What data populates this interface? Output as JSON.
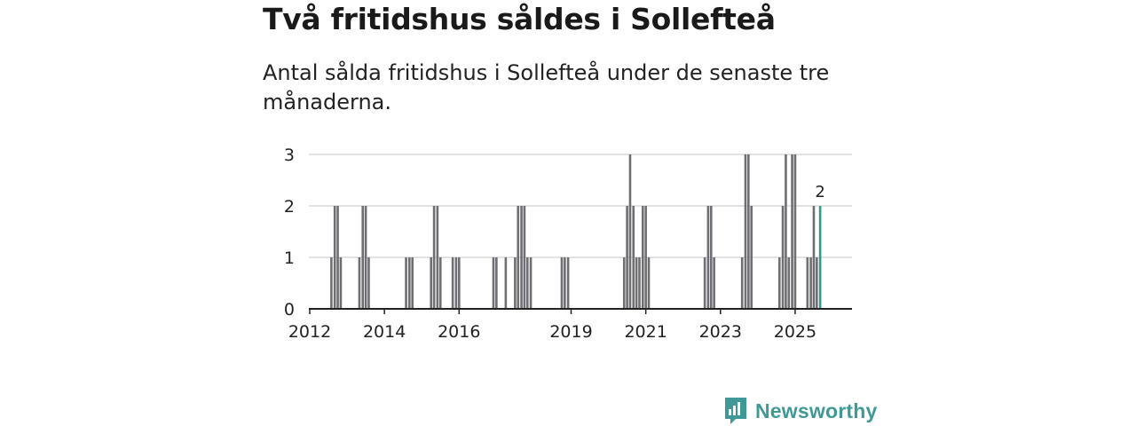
{
  "header": {
    "title": "Två fritidshus såldes i Sollefteå",
    "subtitle": "Antal sålda fritidshus i Sollefteå under de senaste tre månaderna."
  },
  "brand": {
    "name": "Newsworthy"
  },
  "colors": {
    "bar": "#6e6e73",
    "highlight": "#2a9d93",
    "grid": "#d9d9d9",
    "axis": "#222222",
    "brand": "#3f9996"
  },
  "chart_data": {
    "type": "bar",
    "title": "Två fritidshus såldes i Sollefteå",
    "subtitle": "Antal sålda fritidshus i Sollefteå under de senaste tre månaderna.",
    "xlabel": "",
    "ylabel": "",
    "ylim": [
      0,
      3
    ],
    "yticks": [
      "0",
      "1",
      "2",
      "3"
    ],
    "x_start": 2012.0,
    "x_end": 2026.0,
    "xticks": [
      {
        "label": "2012",
        "value": 2012.0
      },
      {
        "label": "2014",
        "value": 2014.0
      },
      {
        "label": "2016",
        "value": 2016.0
      },
      {
        "label": "2019",
        "value": 2019.0
      },
      {
        "label": "2021",
        "value": 2021.0
      },
      {
        "label": "2023",
        "value": 2023.0
      },
      {
        "label": "2025",
        "value": 2025.0
      }
    ],
    "grid": true,
    "bars": [
      {
        "t": 2012.58,
        "v": 1
      },
      {
        "t": 2012.67,
        "v": 2
      },
      {
        "t": 2012.75,
        "v": 2
      },
      {
        "t": 2012.83,
        "v": 1
      },
      {
        "t": 2013.33,
        "v": 1
      },
      {
        "t": 2013.42,
        "v": 2
      },
      {
        "t": 2013.5,
        "v": 2
      },
      {
        "t": 2013.58,
        "v": 1
      },
      {
        "t": 2014.58,
        "v": 1
      },
      {
        "t": 2014.67,
        "v": 1
      },
      {
        "t": 2014.75,
        "v": 1
      },
      {
        "t": 2015.25,
        "v": 1
      },
      {
        "t": 2015.33,
        "v": 2
      },
      {
        "t": 2015.42,
        "v": 2
      },
      {
        "t": 2015.5,
        "v": 1
      },
      {
        "t": 2015.83,
        "v": 1
      },
      {
        "t": 2015.92,
        "v": 1
      },
      {
        "t": 2016.0,
        "v": 1
      },
      {
        "t": 2016.92,
        "v": 1
      },
      {
        "t": 2017.0,
        "v": 1
      },
      {
        "t": 2017.25,
        "v": 1
      },
      {
        "t": 2017.5,
        "v": 1
      },
      {
        "t": 2017.58,
        "v": 2
      },
      {
        "t": 2017.67,
        "v": 2
      },
      {
        "t": 2017.75,
        "v": 2
      },
      {
        "t": 2017.83,
        "v": 1
      },
      {
        "t": 2017.92,
        "v": 1
      },
      {
        "t": 2018.75,
        "v": 1
      },
      {
        "t": 2018.83,
        "v": 1
      },
      {
        "t": 2018.92,
        "v": 1
      },
      {
        "t": 2020.42,
        "v": 1
      },
      {
        "t": 2020.5,
        "v": 2
      },
      {
        "t": 2020.58,
        "v": 3
      },
      {
        "t": 2020.67,
        "v": 2
      },
      {
        "t": 2020.75,
        "v": 1
      },
      {
        "t": 2020.83,
        "v": 1
      },
      {
        "t": 2020.92,
        "v": 2
      },
      {
        "t": 2021.0,
        "v": 2
      },
      {
        "t": 2021.08,
        "v": 1
      },
      {
        "t": 2022.58,
        "v": 1
      },
      {
        "t": 2022.67,
        "v": 2
      },
      {
        "t": 2022.75,
        "v": 2
      },
      {
        "t": 2022.83,
        "v": 1
      },
      {
        "t": 2023.58,
        "v": 1
      },
      {
        "t": 2023.67,
        "v": 3
      },
      {
        "t": 2023.75,
        "v": 3
      },
      {
        "t": 2023.83,
        "v": 2
      },
      {
        "t": 2024.58,
        "v": 1
      },
      {
        "t": 2024.67,
        "v": 2
      },
      {
        "t": 2024.75,
        "v": 3
      },
      {
        "t": 2024.83,
        "v": 1
      },
      {
        "t": 2024.92,
        "v": 3
      },
      {
        "t": 2025.0,
        "v": 3
      },
      {
        "t": 2025.33,
        "v": 1
      },
      {
        "t": 2025.42,
        "v": 1
      },
      {
        "t": 2025.5,
        "v": 2
      },
      {
        "t": 2025.58,
        "v": 1
      },
      {
        "t": 2025.67,
        "v": 2,
        "highlight": true
      }
    ],
    "annotation": {
      "label": "2",
      "t": 2025.67,
      "v": 2
    }
  }
}
